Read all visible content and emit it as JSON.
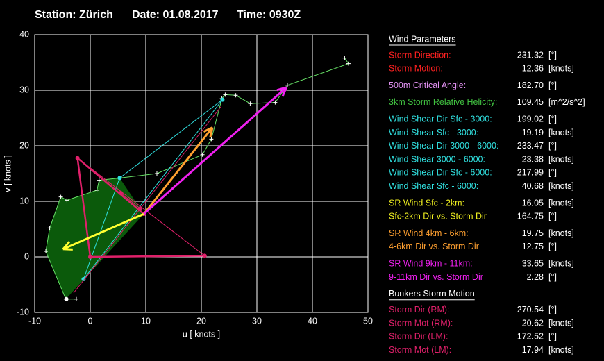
{
  "header": {
    "station": "Station: Zürich",
    "date": "Date: 01.08.2017",
    "time": "Time: 0930Z"
  },
  "chart_data": {
    "type": "hodograph",
    "x_label": "u  [ knots ]",
    "y_label": "v  [ knots ]",
    "xlim": [
      -10,
      50
    ],
    "ylim": [
      -10,
      40
    ],
    "xticks": [
      -10,
      0,
      10,
      20,
      30,
      40,
      50
    ],
    "yticks": [
      -10,
      0,
      10,
      20,
      30,
      40
    ],
    "grid": true,
    "series": [
      {
        "kind": "area",
        "color": "#0b5a0b",
        "u": [
          -4.4,
          -8,
          -7.3,
          -5.3,
          -4.2,
          1.2,
          1.6,
          5.3,
          9.65
        ],
        "v": [
          -7.6,
          1,
          5.2,
          10.8,
          10.2,
          12,
          13.8,
          14.2,
          7.73
        ]
      },
      {
        "kind": "line",
        "color": "#66e066",
        "width": 1,
        "crosses": true,
        "u": [
          -2.5,
          -4.4,
          -8,
          -7.3,
          -5.3,
          -4.2,
          1.2,
          1.6,
          5.3,
          12,
          20.2,
          21.8,
          23.7,
          24.3,
          26.2,
          28.8,
          33.3,
          35.5,
          46.5,
          45.8
        ],
        "v": [
          -7.6,
          -7.6,
          1,
          5.2,
          10.8,
          10.2,
          12,
          13.8,
          14.2,
          15,
          18.4,
          21.2,
          28.5,
          29.2,
          29.1,
          27.6,
          27.8,
          30.9,
          34.8,
          35.8
        ]
      },
      {
        "kind": "line",
        "color": "#30e0e0",
        "width": 1,
        "dots": true,
        "u": [
          5.3,
          -1.2,
          23.8,
          5.3
        ],
        "v": [
          14.2,
          -4,
          28.3,
          14.2
        ]
      },
      {
        "kind": "line",
        "color": "#e0206a",
        "width": 1,
        "u": [
          -2.3,
          20.6
        ],
        "v": [
          17.8,
          0.2
        ]
      },
      {
        "kind": "line",
        "color": "#e0206a",
        "width": 1,
        "u": [
          -3,
          23.5
        ],
        "v": [
          -6.5,
          27
        ]
      },
      {
        "kind": "line",
        "color": "#e0206a",
        "width": 2.5,
        "dots": true,
        "u": [
          20.6,
          0,
          -2.3,
          9.65
        ],
        "v": [
          0.2,
          0,
          17.8,
          7.73
        ]
      },
      {
        "kind": "line",
        "color": "#e0206a",
        "width": 1,
        "dots": true,
        "u": [
          5.5,
          9
        ],
        "v": [
          11.5,
          8.7
        ]
      },
      {
        "kind": "line",
        "color": "#ffff30",
        "width": 3,
        "arrow": true,
        "u": [
          9.65,
          -4.9
        ],
        "v": [
          7.73,
          1.4
        ]
      },
      {
        "kind": "line",
        "color": "#ffa030",
        "width": 3,
        "arrow": true,
        "u": [
          9.65,
          22
        ],
        "v": [
          7.73,
          23.3
        ]
      },
      {
        "kind": "line",
        "color": "#f020f0",
        "width": 3,
        "arrow": true,
        "u": [
          9.65,
          35.3
        ],
        "v": [
          7.73,
          30.5
        ]
      },
      {
        "kind": "line",
        "color": "#ffffff",
        "width": 1,
        "dots": true,
        "u": [
          -4.3
        ],
        "v": [
          -7.6
        ]
      }
    ]
  },
  "panel": {
    "sections": [
      {
        "title": "Wind Parameters",
        "groups": [
          [
            {
              "label": "Storm Direction:",
              "value": "231.32",
              "unit": "[°]",
              "color": "#ff2020"
            },
            {
              "label": "Storm Motion:",
              "value": "12.36",
              "unit": "[knots]",
              "color": "#ff2020"
            }
          ],
          [
            {
              "label": "500m Critical Angle:",
              "value": "182.70",
              "unit": "[°]",
              "color": "#e090f0"
            }
          ],
          [
            {
              "label": "3km Storm Relative Helicity:",
              "value": "109.45",
              "unit": "[m^2/s^2]",
              "color": "#40c040"
            }
          ],
          [
            {
              "label": "Wind Shear Dir Sfc - 3000:",
              "value": "199.02",
              "unit": "[°]",
              "color": "#30e0e0"
            },
            {
              "label": "Wind Shear Sfc - 3000:",
              "value": "19.19",
              "unit": "[knots]",
              "color": "#30e0e0"
            },
            {
              "label": "Wind Shear Dir 3000 - 6000:",
              "value": "233.47",
              "unit": "[°]",
              "color": "#30e0e0"
            },
            {
              "label": "Wind Shear 3000 - 6000:",
              "value": "23.38",
              "unit": "[knots]",
              "color": "#30e0e0"
            },
            {
              "label": "Wind Shear Dir Sfc - 6000:",
              "value": "217.99",
              "unit": "[°]",
              "color": "#30e0e0"
            },
            {
              "label": "Wind Shear Sfc - 6000:",
              "value": "40.68",
              "unit": "[knots]",
              "color": "#30e0e0"
            }
          ],
          [
            {
              "label": "SR Wind Sfc - 2km:",
              "value": "16.05",
              "unit": "[knots]",
              "color": "#f0f020"
            },
            {
              "label": "Sfc-2km Dir vs. Storm Dir",
              "value": "164.75",
              "unit": "[°]",
              "color": "#f0f020"
            }
          ],
          [
            {
              "label": "SR Wind 4km - 6km:",
              "value": "19.75",
              "unit": "[knots]",
              "color": "#ffa030"
            },
            {
              "label": "4-6km Dir vs. Storm Dir",
              "value": "12.75",
              "unit": "[°]",
              "color": "#ffa030"
            }
          ],
          [
            {
              "label": "SR Wind 9km - 11km:",
              "value": "33.65",
              "unit": "[knots]",
              "color": "#f020f0"
            },
            {
              "label": "9-11km Dir vs. Storm Dir",
              "value": "2.28",
              "unit": "[°]",
              "color": "#f020f0"
            }
          ]
        ]
      },
      {
        "title": "Bunkers Storm Motion",
        "groups": [
          [
            {
              "label": "Storm Dir (RM):",
              "value": "270.54",
              "unit": "[°]",
              "color": "#e0206a"
            },
            {
              "label": "Storm Mot (RM):",
              "value": "20.62",
              "unit": "[knots]",
              "color": "#e0206a"
            },
            {
              "label": "Storm Dir (LM):",
              "value": "172.52",
              "unit": "[°]",
              "color": "#e0206a"
            },
            {
              "label": "Storm Mot (LM):",
              "value": "17.94",
              "unit": "[knots]",
              "color": "#e0206a"
            }
          ]
        ]
      }
    ]
  }
}
